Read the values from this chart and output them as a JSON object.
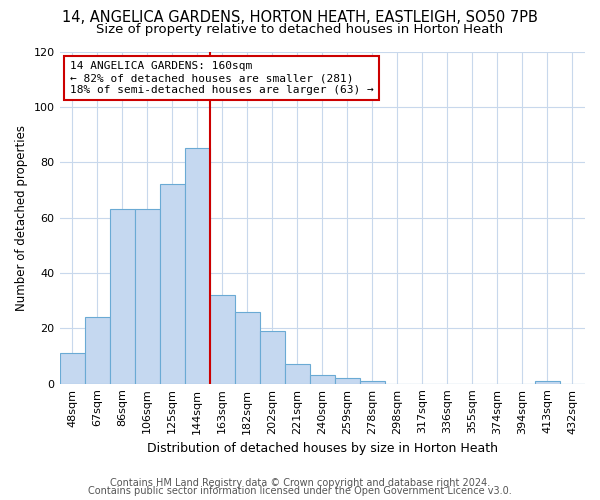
{
  "title_line1": "14, ANGELICA GARDENS, HORTON HEATH, EASTLEIGH, SO50 7PB",
  "title_line2": "Size of property relative to detached houses in Horton Heath",
  "xlabel": "Distribution of detached houses by size in Horton Heath",
  "ylabel": "Number of detached properties",
  "categories": [
    "48sqm",
    "67sqm",
    "86sqm",
    "106sqm",
    "125sqm",
    "144sqm",
    "163sqm",
    "182sqm",
    "202sqm",
    "221sqm",
    "240sqm",
    "259sqm",
    "278sqm",
    "298sqm",
    "317sqm",
    "336sqm",
    "355sqm",
    "374sqm",
    "394sqm",
    "413sqm",
    "432sqm"
  ],
  "values": [
    11,
    24,
    63,
    63,
    72,
    85,
    32,
    26,
    19,
    7,
    3,
    2,
    1,
    0,
    0,
    0,
    0,
    0,
    0,
    1,
    0
  ],
  "bar_color": "#c5d8f0",
  "bar_edgecolor": "#6aaad4",
  "ref_line_color": "#cc0000",
  "annotation_text": "14 ANGELICA GARDENS: 160sqm\n← 82% of detached houses are smaller (281)\n18% of semi-detached houses are larger (63) →",
  "ylim": [
    0,
    120
  ],
  "yticks": [
    0,
    20,
    40,
    60,
    80,
    100,
    120
  ],
  "footer_line1": "Contains HM Land Registry data © Crown copyright and database right 2024.",
  "footer_line2": "Contains public sector information licensed under the Open Government Licence v3.0.",
  "background_color": "#ffffff",
  "plot_background_color": "#ffffff",
  "grid_color": "#c8d8ec",
  "title_fontsize": 10.5,
  "subtitle_fontsize": 9.5,
  "ylabel_fontsize": 8.5,
  "xlabel_fontsize": 9,
  "tick_fontsize": 8,
  "annotation_fontsize": 8,
  "footer_fontsize": 7
}
